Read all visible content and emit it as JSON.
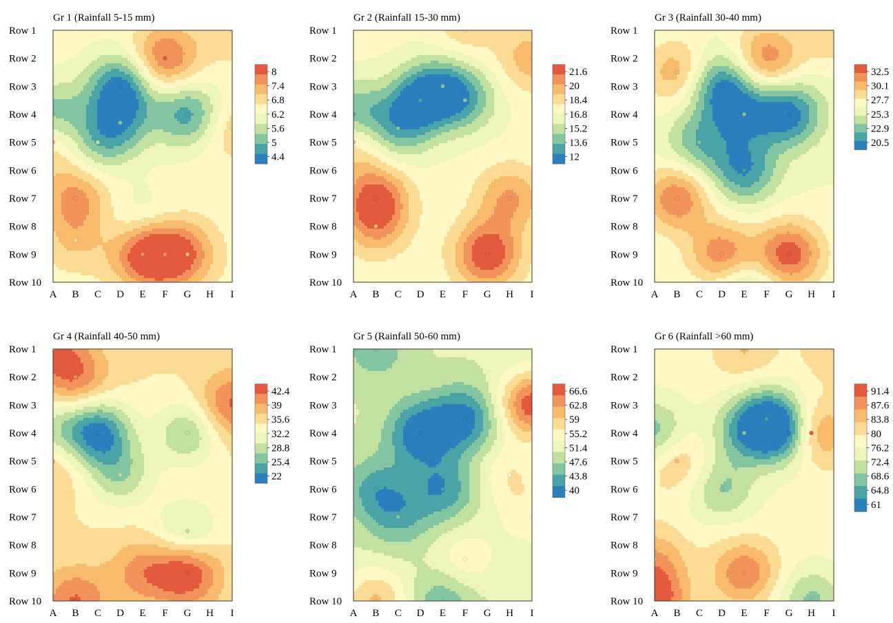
{
  "figure": {
    "row_labels": [
      "Row 1",
      "Row 2",
      "Row 3",
      "Row 4",
      "Row 5",
      "Row 6",
      "Row 7",
      "Row 8",
      "Row 9",
      "Row 10"
    ],
    "col_labels": [
      "A",
      "B",
      "C",
      "D",
      "E",
      "F",
      "G",
      "H",
      "I"
    ],
    "colorscale": [
      "#2a7fbd",
      "#4aa3a7",
      "#83c5a0",
      "#c2e0a0",
      "#eef5bc",
      "#fff7c4",
      "#fcdc94",
      "#f8bb6c",
      "#f2935c",
      "#e35a3e"
    ]
  },
  "chart_data": [
    {
      "type": "heatmap",
      "title": "Gr 1 (Rainfall 5-15 mm)",
      "colorbar_ticks": [
        "8",
        "7.4",
        "6.8",
        "6.2",
        "5.6",
        "5",
        "4.4"
      ],
      "vmin": 4.4,
      "vmax": 8.3,
      "base": 6.5,
      "hotspots": [
        {
          "col": "F",
          "row": 2,
          "value": 8.0
        },
        {
          "col": "E",
          "row": 9,
          "value": 7.9
        },
        {
          "col": "F",
          "row": 9,
          "value": 7.6
        },
        {
          "col": "G",
          "row": 9,
          "value": 7.4
        },
        {
          "col": "B",
          "row": 7,
          "value": 7.6
        },
        {
          "col": "B",
          "row": 8.5,
          "value": 7.1
        },
        {
          "col": "A",
          "row": 5,
          "value": 7.2
        },
        {
          "col": "I",
          "row": 1,
          "value": 7.0
        },
        {
          "col": "I",
          "row": 4.5,
          "value": 7.1
        },
        {
          "col": "D",
          "row": 3,
          "value": 4.7
        },
        {
          "col": "D",
          "row": 4.3,
          "value": 5.4
        },
        {
          "col": "C",
          "row": 5,
          "value": 5.6
        },
        {
          "col": "G",
          "row": 4,
          "value": 5.0
        },
        {
          "col": "A",
          "row": 4,
          "value": 5.3
        },
        {
          "col": "E",
          "row": 7.8,
          "value": 6.0
        }
      ]
    },
    {
      "type": "heatmap",
      "title": "Gr 2 (Rainfall 15-30 mm)",
      "colorbar_ticks": [
        "21.6",
        "20",
        "18.4",
        "16.8",
        "15.2",
        "13.6",
        "12"
      ],
      "vmin": 12,
      "vmax": 22.5,
      "base": 17.5,
      "hotspots": [
        {
          "col": "G",
          "row": 9,
          "value": 22.5
        },
        {
          "col": "B",
          "row": 7,
          "value": 21.6
        },
        {
          "col": "B",
          "row": 8,
          "value": 19.8
        },
        {
          "col": "H",
          "row": 7,
          "value": 20.5
        },
        {
          "col": "A",
          "row": 5,
          "value": 19.8
        },
        {
          "col": "I",
          "row": 2,
          "value": 20.0
        },
        {
          "col": "F",
          "row": 1,
          "value": 19.0
        },
        {
          "col": "D",
          "row": 3.5,
          "value": 13.5
        },
        {
          "col": "C",
          "row": 4.5,
          "value": 14.5
        },
        {
          "col": "F",
          "row": 3.5,
          "value": 14.6
        },
        {
          "col": "A",
          "row": 4,
          "value": 14.0
        },
        {
          "col": "E",
          "row": 3,
          "value": 14.8
        }
      ]
    },
    {
      "type": "heatmap",
      "title": "Gr 3 (Rainfall 30-40 mm)",
      "colorbar_ticks": [
        "32.5",
        "30.1",
        "27.7",
        "25.3",
        "22.9",
        "20.5"
      ],
      "vmin": 20.5,
      "vmax": 33.5,
      "base": 27.0,
      "hotspots": [
        {
          "col": "F",
          "row": 2,
          "value": 31.8
        },
        {
          "col": "B",
          "row": 2.5,
          "value": 30.5
        },
        {
          "col": "B",
          "row": 7,
          "value": 32.0
        },
        {
          "col": "G",
          "row": 9,
          "value": 33.0
        },
        {
          "col": "D",
          "row": 9,
          "value": 31.8
        },
        {
          "col": "I",
          "row": 1,
          "value": 29.5
        },
        {
          "col": "D",
          "row": 3,
          "value": 21.5
        },
        {
          "col": "G",
          "row": 4,
          "value": 21.2
        },
        {
          "col": "C",
          "row": 5,
          "value": 23.5
        },
        {
          "col": "E",
          "row": 6,
          "value": 22.0
        },
        {
          "col": "E",
          "row": 4,
          "value": 23.5
        },
        {
          "col": "E",
          "row": 10.5,
          "value": 23.5
        }
      ]
    },
    {
      "type": "heatmap",
      "title": "Gr 4 (Rainfall 40-50 mm)",
      "colorbar_ticks": [
        "42.4",
        "39",
        "35.6",
        "32.2",
        "28.8",
        "25.4",
        "22"
      ],
      "vmin": 22,
      "vmax": 43.5,
      "base": 35.0,
      "hotspots": [
        {
          "col": "G",
          "row": 9,
          "value": 43.5
        },
        {
          "col": "B",
          "row": 2,
          "value": 41.0
        },
        {
          "col": "A",
          "row": 1,
          "value": 39.5
        },
        {
          "col": "I",
          "row": 3,
          "value": 42.0
        },
        {
          "col": "B",
          "row": 10,
          "value": 41.5
        },
        {
          "col": "E",
          "row": 9,
          "value": 40.0
        },
        {
          "col": "A",
          "row": 5,
          "value": 38.5
        },
        {
          "col": "C",
          "row": 4,
          "value": 23.5
        },
        {
          "col": "D",
          "row": 5.5,
          "value": 29.0
        },
        {
          "col": "G",
          "row": 4,
          "value": 28.5
        },
        {
          "col": "A",
          "row": 4,
          "value": 29.5
        },
        {
          "col": "G",
          "row": 7.5,
          "value": 29.5
        }
      ]
    },
    {
      "type": "heatmap",
      "title": "Gr 5 (Rainfall 50-60 mm)",
      "colorbar_ticks": [
        "66.6",
        "62.8",
        "59",
        "55.2",
        "51.4",
        "47.6",
        "43.8",
        "40"
      ],
      "vmin": 40,
      "vmax": 68,
      "base": 51.5,
      "hotspots": [
        {
          "col": "D",
          "row": 4,
          "value": 40.5
        },
        {
          "col": "F",
          "row": 3.5,
          "value": 41.5
        },
        {
          "col": "E",
          "row": 6,
          "value": 43.5
        },
        {
          "col": "B",
          "row": 6,
          "value": 45.0
        },
        {
          "col": "C",
          "row": 7,
          "value": 46.0
        },
        {
          "col": "B",
          "row": 1,
          "value": 46.5
        },
        {
          "col": "E",
          "row": 10,
          "value": 46.0
        },
        {
          "col": "I",
          "row": 3,
          "value": 67.0
        },
        {
          "col": "B",
          "row": 10,
          "value": 60.0
        },
        {
          "col": "H",
          "row": 5.5,
          "value": 56.5
        },
        {
          "col": "F",
          "row": 8.5,
          "value": 56.0
        },
        {
          "col": "I",
          "row": 7,
          "value": 55.5
        }
      ]
    },
    {
      "type": "heatmap",
      "title": "Gr 6 (Rainfall >60 mm)",
      "colorbar_ticks": [
        "91.4",
        "87.6",
        "83.8",
        "80",
        "76.2",
        "72.4",
        "68.6",
        "64.8",
        "61"
      ],
      "vmin": 61,
      "vmax": 93.5,
      "base": 78.5,
      "hotspots": [
        {
          "col": "H",
          "row": 4,
          "value": 93.0
        },
        {
          "col": "A",
          "row": 10,
          "value": 92.5
        },
        {
          "col": "E",
          "row": 9,
          "value": 89.5
        },
        {
          "col": "A",
          "row": 8.5,
          "value": 86.0
        },
        {
          "col": "B",
          "row": 5,
          "value": 85.0
        },
        {
          "col": "E",
          "row": 1,
          "value": 84.0
        },
        {
          "col": "I",
          "row": 1,
          "value": 83.5
        },
        {
          "col": "G",
          "row": 4,
          "value": 62.0
        },
        {
          "col": "F",
          "row": 3.5,
          "value": 67.0
        },
        {
          "col": "E",
          "row": 4,
          "value": 69.5
        },
        {
          "col": "A",
          "row": 4,
          "value": 68.5
        },
        {
          "col": "H",
          "row": 10,
          "value": 70.0
        },
        {
          "col": "D",
          "row": 6,
          "value": 70.5
        }
      ]
    }
  ]
}
